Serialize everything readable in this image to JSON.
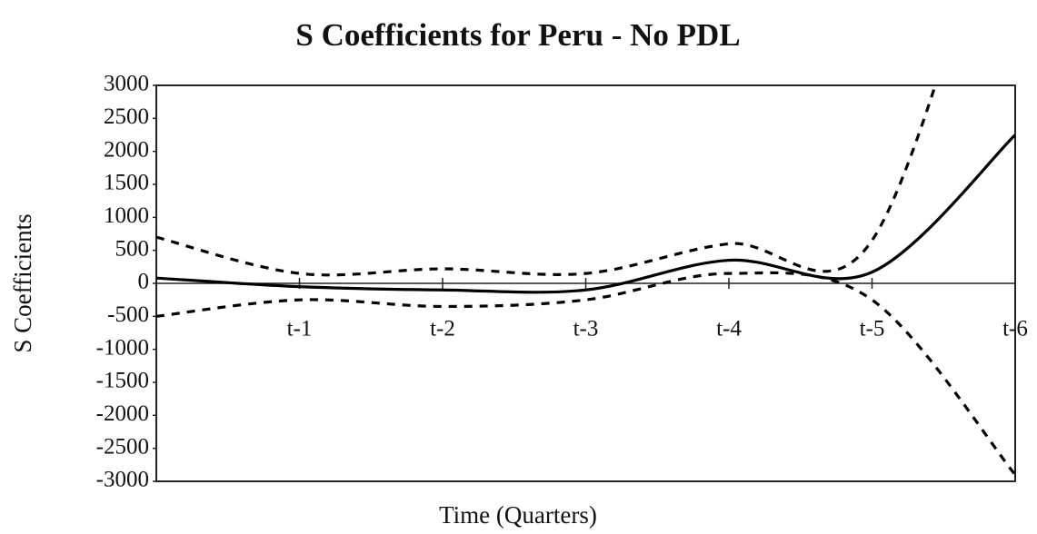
{
  "chart_data": {
    "type": "line",
    "title": "S Coefficients for Peru - No PDL",
    "xlabel": "Time (Quarters)",
    "ylabel": "S Coefficients",
    "categories": [
      null,
      "t-1",
      "t-2",
      "t-3",
      "t-4",
      "t-5",
      "t-6"
    ],
    "series": [
      {
        "color": "#000000",
        "style": "solid",
        "values": [
          80,
          -50,
          -100,
          -100,
          350,
          170,
          2250
        ]
      },
      {
        "color": "#000000",
        "style": "dashed",
        "values": [
          700,
          150,
          220,
          150,
          600,
          650,
          7000
        ]
      },
      {
        "color": "#000000",
        "style": "dashed",
        "values": [
          -500,
          -250,
          -350,
          -250,
          150,
          -250,
          -2900
        ]
      }
    ],
    "ylim": [
      -3000,
      3000
    ],
    "yticks": [
      3000,
      2500,
      2000,
      1500,
      1000,
      500,
      0,
      -500,
      -1000,
      -1500,
      -2000,
      -2500,
      -3000
    ],
    "grid": false
  }
}
